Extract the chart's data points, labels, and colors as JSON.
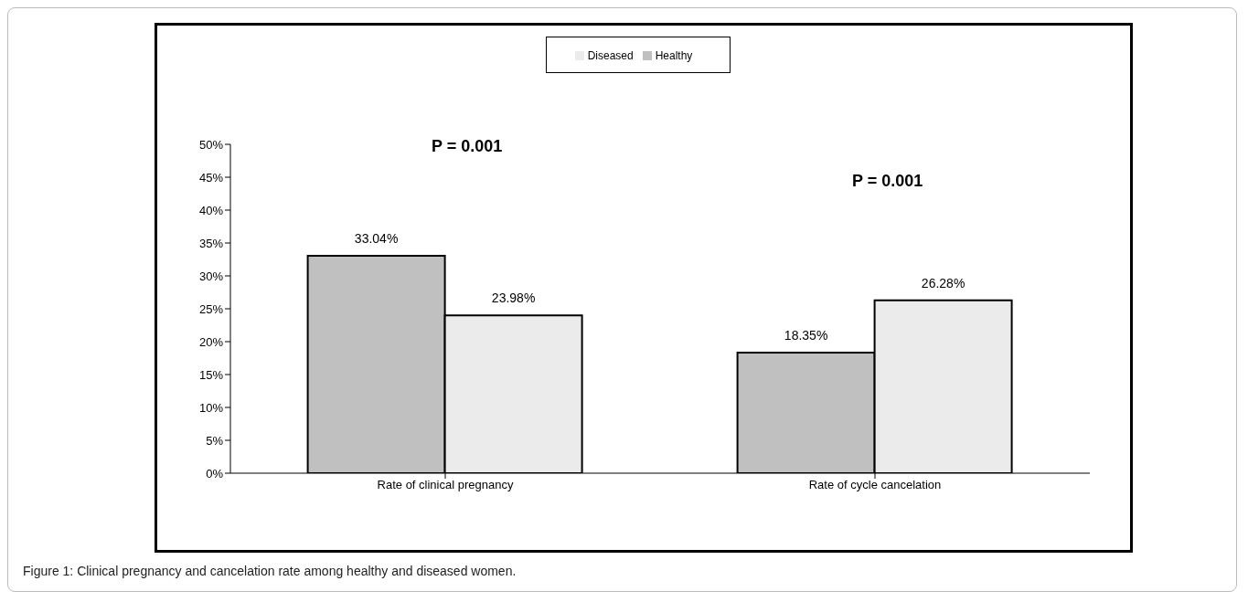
{
  "chart_data": {
    "type": "bar",
    "categories": [
      "Rate of clinical pregnancy",
      "Rate of cycle cancelation"
    ],
    "series": [
      {
        "name": "Healthy",
        "color": "#c0c0c0",
        "values": [
          33.04,
          18.35
        ],
        "value_labels": [
          "33.04%",
          "18.35%"
        ]
      },
      {
        "name": "Diseased",
        "color": "#ebebeb",
        "values": [
          23.98,
          26.28
        ],
        "value_labels": [
          "23.98%",
          "26.28%"
        ]
      }
    ],
    "ylim": [
      0,
      50
    ],
    "yticks": [
      {
        "value": 0,
        "label": "0%"
      },
      {
        "value": 5,
        "label": "5%"
      },
      {
        "value": 10,
        "label": "10%"
      },
      {
        "value": 15,
        "label": "15%"
      },
      {
        "value": 20,
        "label": "20%"
      },
      {
        "value": 25,
        "label": "25%"
      },
      {
        "value": 30,
        "label": "30%"
      },
      {
        "value": 35,
        "label": "35%"
      },
      {
        "value": 40,
        "label": "40%"
      },
      {
        "value": 45,
        "label": "45%"
      },
      {
        "value": 50,
        "label": "50%"
      }
    ],
    "grid": false,
    "legend": "top",
    "annotations": [
      "P = 0.001",
      "P = 0.001",
      "Figure 1: Clinical pregnancy and cancelation rate among healthy and diseased women."
    ]
  }
}
